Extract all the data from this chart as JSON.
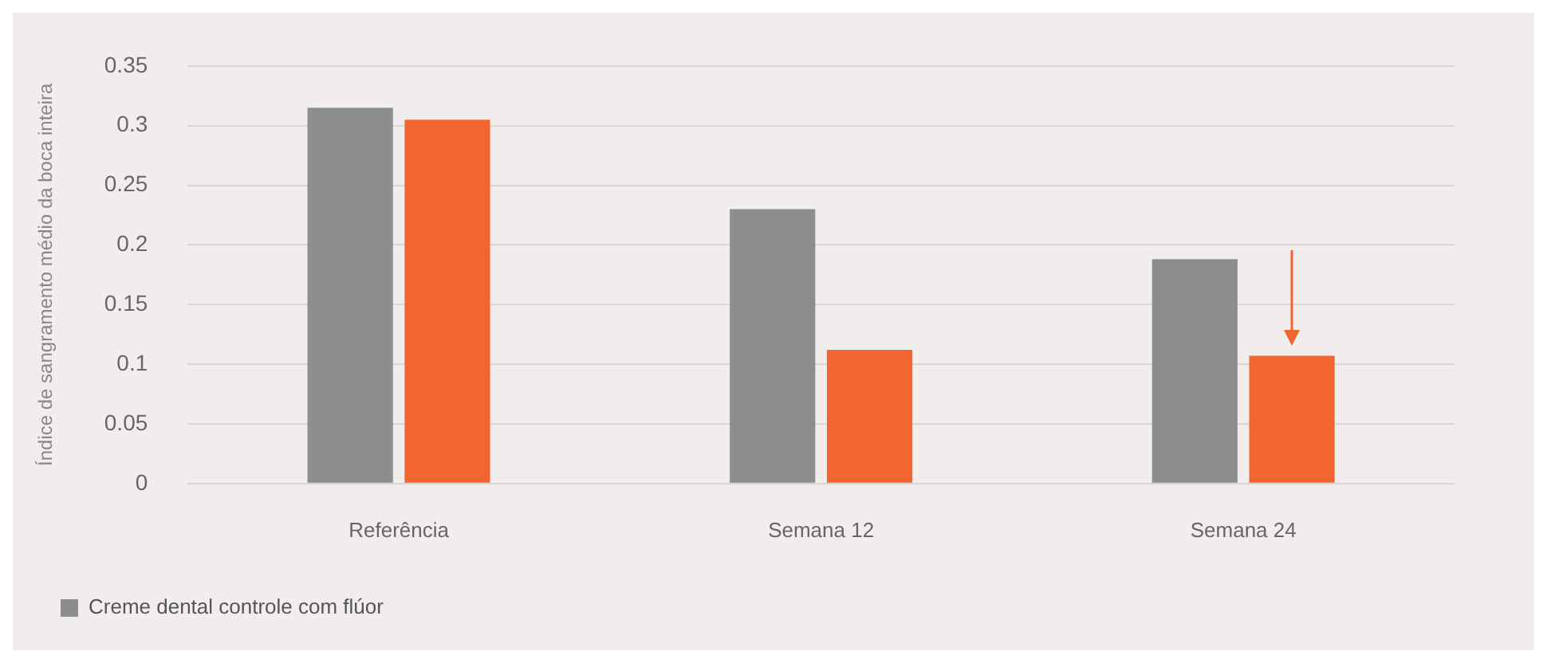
{
  "chart_data": {
    "type": "bar",
    "ylabel": "Índice de sangramento médio da boca inteira",
    "categories": [
      "Referência",
      "Semana 12",
      "Semana 24"
    ],
    "series": [
      {
        "name": "Creme dental controle com flúor",
        "color": "#8b8d8f",
        "values": [
          0.315,
          0.23,
          0.188
        ]
      },
      {
        "color": "#f26430",
        "values": [
          0.305,
          0.112,
          0.107
        ]
      }
    ],
    "ylim": [
      0,
      0.35
    ],
    "yticks": [
      0,
      0.05,
      0.1,
      0.15,
      0.2,
      0.25,
      0.3,
      0.35
    ],
    "grid": "y",
    "legend": "bottom left"
  }
}
